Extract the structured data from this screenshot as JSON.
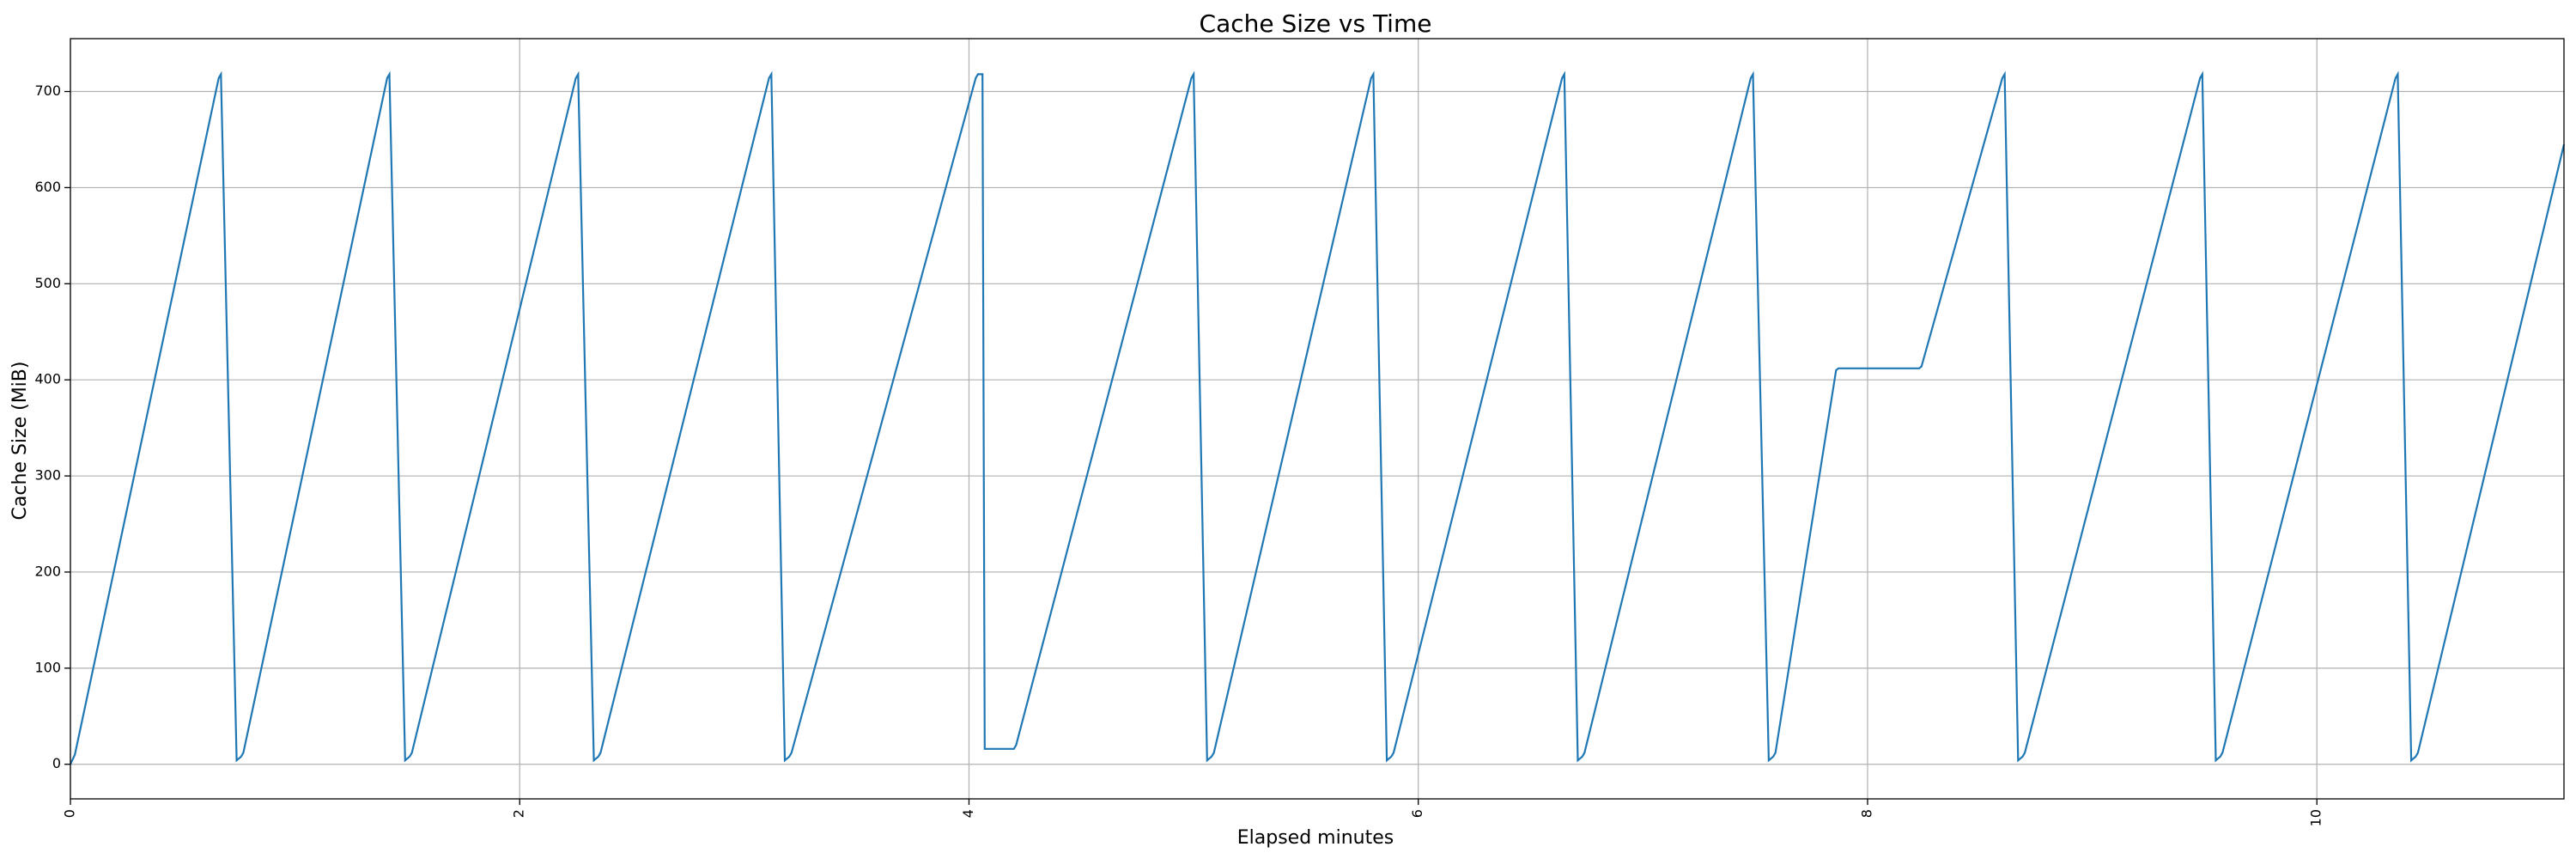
{
  "chart_data": {
    "type": "line",
    "title": "Cache Size vs Time",
    "xlabel": "Elapsed minutes",
    "ylabel": "Cache Size (MiB)",
    "xlim": [
      0,
      11.1
    ],
    "ylim": [
      -36,
      755
    ],
    "x_ticks": [
      0,
      2,
      4,
      6,
      8,
      10
    ],
    "x_tick_labels": [
      "0",
      "2",
      "4",
      "6",
      "8",
      "10"
    ],
    "x_tick_label_rotation": "vertical",
    "y_ticks": [
      0,
      100,
      200,
      300,
      400,
      500,
      600,
      700
    ],
    "y_tick_labels": [
      "0",
      "100",
      "200",
      "300",
      "400",
      "500",
      "600",
      "700"
    ],
    "grid": true,
    "legend": "none",
    "color": "#1f77b4",
    "series": [
      {
        "x": [
          0.0,
          0.02,
          0.66,
          0.67,
          0.74,
          0.76,
          0.77,
          1.41,
          1.42,
          1.49,
          1.51,
          1.52,
          2.25,
          2.26,
          2.33,
          2.35,
          2.36,
          3.11,
          3.12,
          3.18,
          3.2,
          3.21,
          4.03,
          4.04,
          4.06,
          4.07,
          4.2,
          4.21,
          4.99,
          5.0,
          5.06,
          5.08,
          5.09,
          5.79,
          5.8,
          5.86,
          5.88,
          5.89,
          6.64,
          6.65,
          6.71,
          6.73,
          6.74,
          7.48,
          7.49,
          7.56,
          7.58,
          7.59,
          7.86,
          7.87,
          8.23,
          8.24,
          8.6,
          8.61,
          8.67,
          8.69,
          8.7,
          9.48,
          9.49,
          9.55,
          9.57,
          9.58,
          10.35,
          10.36,
          10.42,
          10.44,
          10.45,
          11.1
        ],
        "y": [
          0,
          10,
          714,
          718,
          4,
          8,
          12,
          714,
          718,
          4,
          8,
          12,
          714,
          718,
          4,
          8,
          12,
          714,
          718,
          4,
          8,
          12,
          714,
          718,
          718,
          16,
          16,
          20,
          714,
          718,
          4,
          8,
          12,
          714,
          718,
          4,
          8,
          12,
          714,
          718,
          4,
          8,
          12,
          714,
          718,
          4,
          8,
          12,
          410,
          412,
          412,
          414,
          714,
          718,
          4,
          8,
          12,
          714,
          718,
          4,
          8,
          12,
          714,
          718,
          4,
          8,
          12,
          645
        ]
      }
    ]
  }
}
